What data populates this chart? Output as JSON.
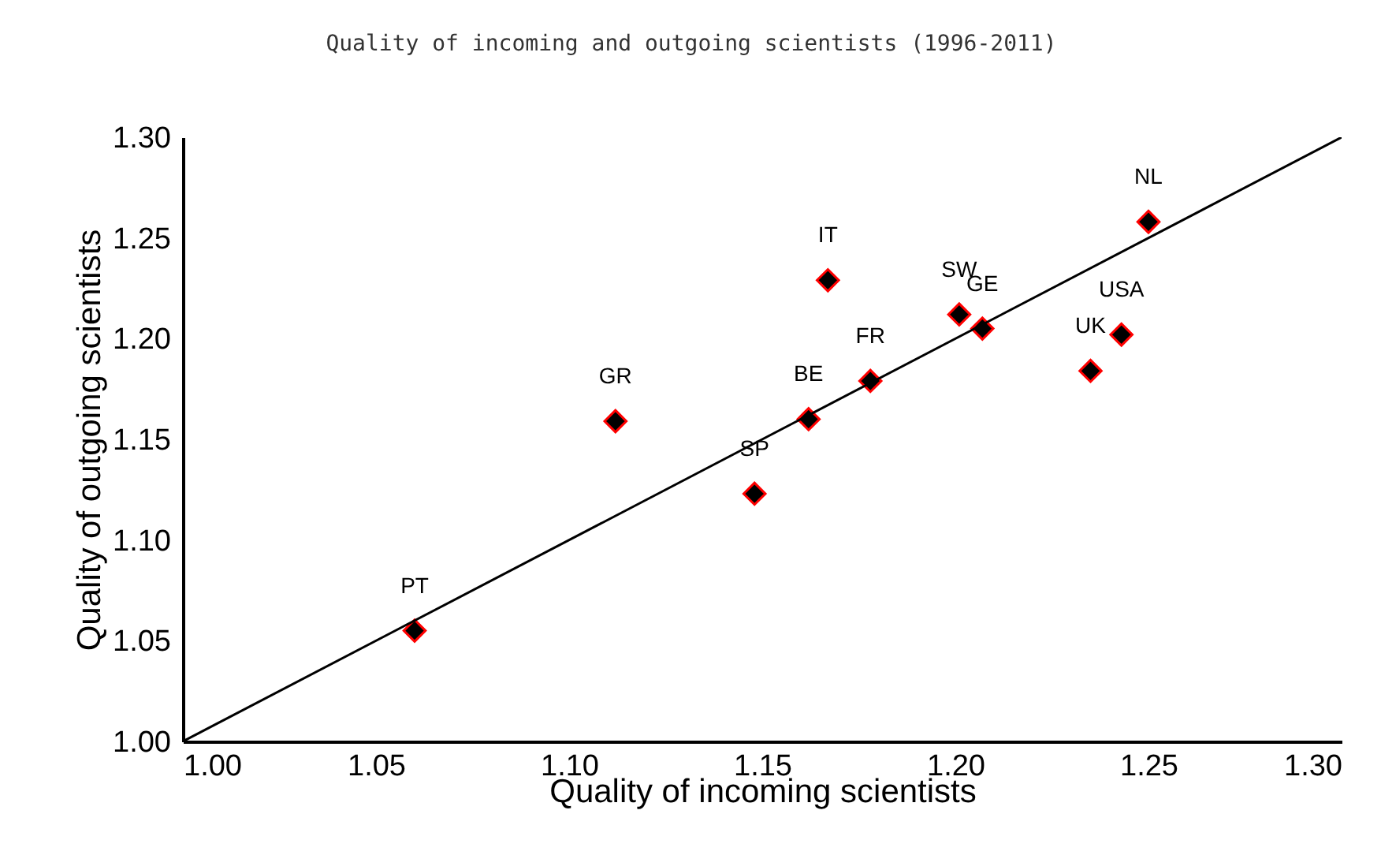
{
  "chart_data": {
    "type": "scatter",
    "title": "Quality of incoming and outgoing scientists (1996-2011)",
    "xlabel": "Quality of incoming scientists",
    "ylabel": "Quality of outgoing scientists",
    "xlim": [
      1,
      1.3
    ],
    "ylim": [
      1,
      1.3
    ],
    "xticks": [
      {
        "value": 1,
        "label": "1.00"
      },
      {
        "value": 1.05,
        "label": "1.05"
      },
      {
        "value": 1.1,
        "label": "1.10"
      },
      {
        "value": 1.15,
        "label": "1.15"
      },
      {
        "value": 1.2,
        "label": "1.20"
      },
      {
        "value": 1.25,
        "label": "1.25"
      },
      {
        "value": 1.3,
        "label": "1.30"
      }
    ],
    "yticks": [
      {
        "value": 1,
        "label": "1.00"
      },
      {
        "value": 1.05,
        "label": "1.05"
      },
      {
        "value": 1.1,
        "label": "1.10"
      },
      {
        "value": 1.15,
        "label": "1.15"
      },
      {
        "value": 1.2,
        "label": "1.20"
      },
      {
        "value": 1.25,
        "label": "1.25"
      },
      {
        "value": 1.3,
        "label": "1.30"
      }
    ],
    "grid": false,
    "series": [
      {
        "marker": "diamond",
        "color": "#000000",
        "x": [
          1.06,
          1.112,
          1.148,
          1.162,
          1.167,
          1.178,
          1.201,
          1.207,
          1.235,
          1.243,
          1.25
        ],
        "values": [
          1.055,
          1.159,
          1.123,
          1.16,
          1.229,
          1.179,
          1.212,
          1.205,
          1.184,
          1.202,
          1.258
        ]
      },
      {
        "type": "line",
        "color": "#000000",
        "line_style": "solid",
        "x": [
          1,
          1.3
        ],
        "values": [
          1,
          1.3
        ]
      }
    ],
    "annotations": [
      {
        "text": "PT",
        "x": 1.06,
        "y": 1.055
      },
      {
        "text": "GR",
        "x": 1.112,
        "y": 1.159
      },
      {
        "text": "SP",
        "x": 1.148,
        "y": 1.123
      },
      {
        "text": "BE",
        "x": 1.162,
        "y": 1.16
      },
      {
        "text": "IT",
        "x": 1.167,
        "y": 1.229
      },
      {
        "text": "FR",
        "x": 1.178,
        "y": 1.179
      },
      {
        "text": "SW",
        "x": 1.201,
        "y": 1.212
      },
      {
        "text": "GE",
        "x": 1.207,
        "y": 1.205
      },
      {
        "text": "UK",
        "x": 1.235,
        "y": 1.184
      },
      {
        "text": "USA",
        "x": 1.243,
        "y": 1.202
      },
      {
        "text": "NL",
        "x": 1.25,
        "y": 1.258
      }
    ]
  }
}
